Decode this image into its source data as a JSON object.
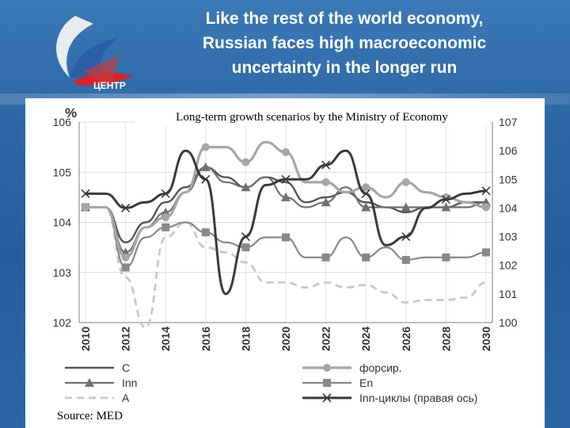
{
  "header": {
    "title_line1": "Like the rest of the world economy,",
    "title_line2": "Russian faces high macroeconomic",
    "title_line3": "uncertainty in the longer run",
    "logo_text": "ЦЕНТР"
  },
  "source": "Source: MED",
  "colors": {
    "background": "#2f6fae",
    "C": "#555555",
    "forsir": "#a6a6a6",
    "Inn": "#707070",
    "En": "#888888",
    "A": "#c8c8c8",
    "Inn_cycles": "#3a3a3a"
  },
  "chart_data": {
    "type": "line",
    "title": "Long-term growth scenarios by the Ministry of Economy",
    "ylabel_left": "%",
    "ylim_left": [
      102,
      106
    ],
    "ylim_right": [
      100,
      107
    ],
    "left_ticks": [
      "102",
      "103",
      "104",
      "105",
      "106"
    ],
    "right_ticks": [
      "100",
      "101",
      "102",
      "103",
      "104",
      "105",
      "106",
      "107"
    ],
    "x_tick_labels": [
      "2010",
      "2012",
      "2014",
      "2016",
      "2018",
      "2020",
      "2022",
      "2024",
      "2026",
      "2028",
      "2030"
    ],
    "x": [
      2010,
      2011,
      2012,
      2013,
      2014,
      2015,
      2016,
      2017,
      2018,
      2019,
      2020,
      2021,
      2022,
      2023,
      2024,
      2025,
      2026,
      2027,
      2028,
      2029,
      2030
    ],
    "series": [
      {
        "name": "C",
        "axis": "left",
        "values": [
          104.3,
          104.3,
          103.6,
          104.0,
          104.4,
          104.7,
          105.1,
          104.9,
          104.7,
          104.9,
          104.8,
          104.4,
          104.5,
          104.6,
          104.4,
          104.3,
          104.2,
          104.3,
          104.3,
          104.4,
          104.4
        ]
      },
      {
        "name": "форсир.",
        "axis": "left",
        "values": [
          104.3,
          104.3,
          103.3,
          103.9,
          104.1,
          104.6,
          105.5,
          105.5,
          105.2,
          105.6,
          105.4,
          104.8,
          104.8,
          104.6,
          104.7,
          104.5,
          104.8,
          104.6,
          104.5,
          104.4,
          104.3
        ]
      },
      {
        "name": "Inn",
        "axis": "left",
        "values": [
          104.3,
          104.3,
          103.4,
          103.9,
          104.2,
          104.6,
          105.1,
          104.8,
          104.7,
          104.9,
          104.5,
          104.3,
          104.4,
          104.7,
          104.3,
          104.3,
          104.3,
          104.3,
          104.3,
          104.3,
          104.4
        ]
      },
      {
        "name": "En",
        "axis": "left",
        "values": [
          104.3,
          104.3,
          103.1,
          103.7,
          103.9,
          104.0,
          103.8,
          103.6,
          103.5,
          103.7,
          103.7,
          103.3,
          103.3,
          103.7,
          103.3,
          103.5,
          103.25,
          103.3,
          103.3,
          103.3,
          103.4
        ]
      },
      {
        "name": "A",
        "axis": "left",
        "values": [
          104.3,
          104.3,
          102.9,
          101.9,
          103.7,
          104.0,
          103.5,
          103.4,
          103.2,
          102.8,
          102.8,
          102.7,
          102.8,
          102.7,
          102.75,
          102.6,
          102.4,
          102.45,
          102.45,
          102.5,
          102.8
        ]
      },
      {
        "name": "Inn-циклы (правая ось)",
        "axis": "right",
        "values": [
          104.5,
          104.5,
          104.0,
          104.2,
          104.5,
          106.0,
          105.0,
          101.0,
          103.0,
          104.8,
          105.0,
          105.0,
          105.5,
          106.0,
          104.5,
          102.7,
          103.0,
          104.0,
          104.3,
          104.5,
          104.6
        ]
      }
    ],
    "legend": {
      "placement": "bottom",
      "entries": [
        "C",
        "форсир.",
        "Inn",
        "En",
        "A",
        "Inn-циклы (правая ось)"
      ]
    }
  }
}
